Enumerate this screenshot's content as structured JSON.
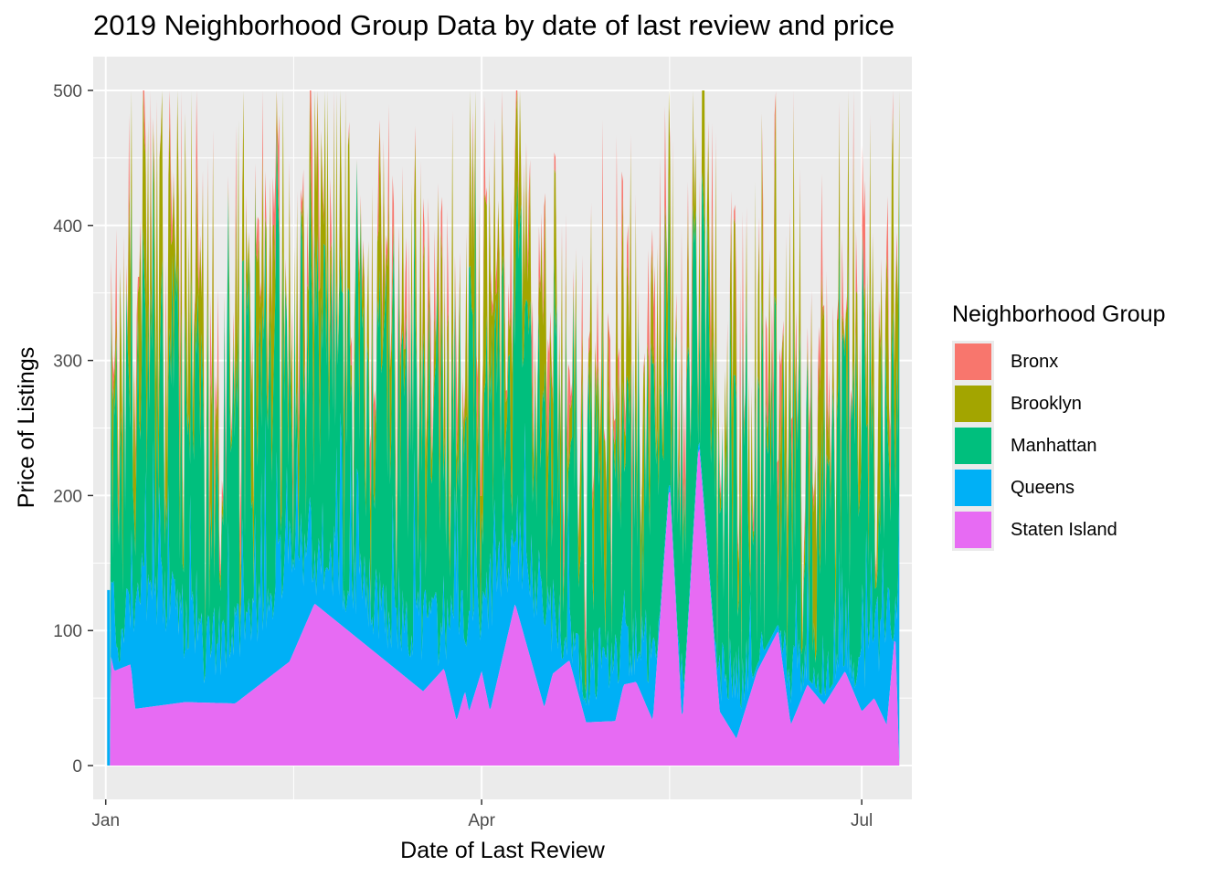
{
  "chart_data": {
    "type": "area",
    "title": "2019 Neighborhood Group Data by date of last review and price",
    "xlabel": "Date of Last Review",
    "ylabel": "Price of Listings",
    "x_ticks": [
      "Jan",
      "Apr",
      "Jul"
    ],
    "y_ticks": [
      0,
      100,
      200,
      300,
      400,
      500
    ],
    "xlim": [
      "2018-12-29",
      "2019-07-13"
    ],
    "ylim": [
      -25,
      525
    ],
    "grid": true,
    "legend_title": "Neighborhood Group",
    "legend_position": "right",
    "stacked": true,
    "series": [
      {
        "name": "Bronx",
        "color": "#F8766D"
      },
      {
        "name": "Brooklyn",
        "color": "#A3A500"
      },
      {
        "name": "Manhattan",
        "color": "#00BF7D"
      },
      {
        "name": "Queens",
        "color": "#00B0F6"
      },
      {
        "name": "Staten Island",
        "color": "#E76BF3"
      }
    ],
    "staten_island_baseline": [
      [
        "2019-01-02",
        0
      ],
      [
        "2019-01-02",
        85
      ],
      [
        "2019-01-03",
        70
      ],
      [
        "2019-01-07",
        75
      ],
      [
        "2019-01-08",
        42
      ],
      [
        "2019-01-20",
        47
      ],
      [
        "2019-02-01",
        46
      ],
      [
        "2019-02-14",
        77
      ],
      [
        "2019-02-20",
        120
      ],
      [
        "2019-03-18",
        55
      ],
      [
        "2019-03-23",
        72
      ],
      [
        "2019-03-26",
        33
      ],
      [
        "2019-03-28",
        55
      ],
      [
        "2019-03-29",
        40
      ],
      [
        "2019-04-01",
        70
      ],
      [
        "2019-04-03",
        40
      ],
      [
        "2019-04-09",
        120
      ],
      [
        "2019-04-16",
        43
      ],
      [
        "2019-04-18",
        68
      ],
      [
        "2019-04-22",
        78
      ],
      [
        "2019-04-26",
        32
      ],
      [
        "2019-05-03",
        33
      ],
      [
        "2019-05-05",
        60
      ],
      [
        "2019-05-08",
        62
      ],
      [
        "2019-05-12",
        33
      ],
      [
        "2019-05-16",
        210
      ],
      [
        "2019-05-19",
        30
      ],
      [
        "2019-05-23",
        240
      ],
      [
        "2019-05-28",
        40
      ],
      [
        "2019-06-01",
        20
      ],
      [
        "2019-06-06",
        70
      ],
      [
        "2019-06-11",
        100
      ],
      [
        "2019-06-14",
        30
      ],
      [
        "2019-06-18",
        60
      ],
      [
        "2019-06-22",
        45
      ],
      [
        "2019-06-27",
        70
      ],
      [
        "2019-07-01",
        40
      ],
      [
        "2019-07-04",
        50
      ],
      [
        "2019-07-07",
        30
      ],
      [
        "2019-07-09",
        100
      ],
      [
        "2019-07-10",
        0
      ]
    ],
    "queens_top_approx": [
      [
        "2019-01-02",
        130
      ],
      [
        "2019-01-04",
        90
      ],
      [
        "2019-01-07",
        120
      ],
      [
        "2019-01-15",
        130
      ],
      [
        "2019-01-25",
        85
      ],
      [
        "2019-02-05",
        110
      ],
      [
        "2019-02-15",
        160
      ],
      [
        "2019-02-25",
        150
      ],
      [
        "2019-03-10",
        110
      ],
      [
        "2019-03-20",
        100
      ],
      [
        "2019-04-01",
        120
      ],
      [
        "2019-04-10",
        160
      ],
      [
        "2019-04-25",
        70
      ],
      [
        "2019-05-10",
        90
      ],
      [
        "2019-05-25",
        60
      ],
      [
        "2019-06-10",
        75
      ],
      [
        "2019-06-25",
        55
      ],
      [
        "2019-07-10",
        120
      ]
    ]
  }
}
